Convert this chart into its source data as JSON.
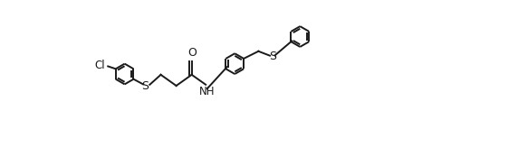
{
  "bg_color": "#ffffff",
  "line_color": "#1a1a1a",
  "text_color": "#1a1a1a",
  "figsize": [
    5.72,
    1.64
  ],
  "dpi": 100,
  "ring_r": 0.28,
  "lw": 1.4,
  "fontsize": 8.5,
  "xlim": [
    0.0,
    10.5
  ],
  "ylim": [
    -0.5,
    3.5
  ]
}
